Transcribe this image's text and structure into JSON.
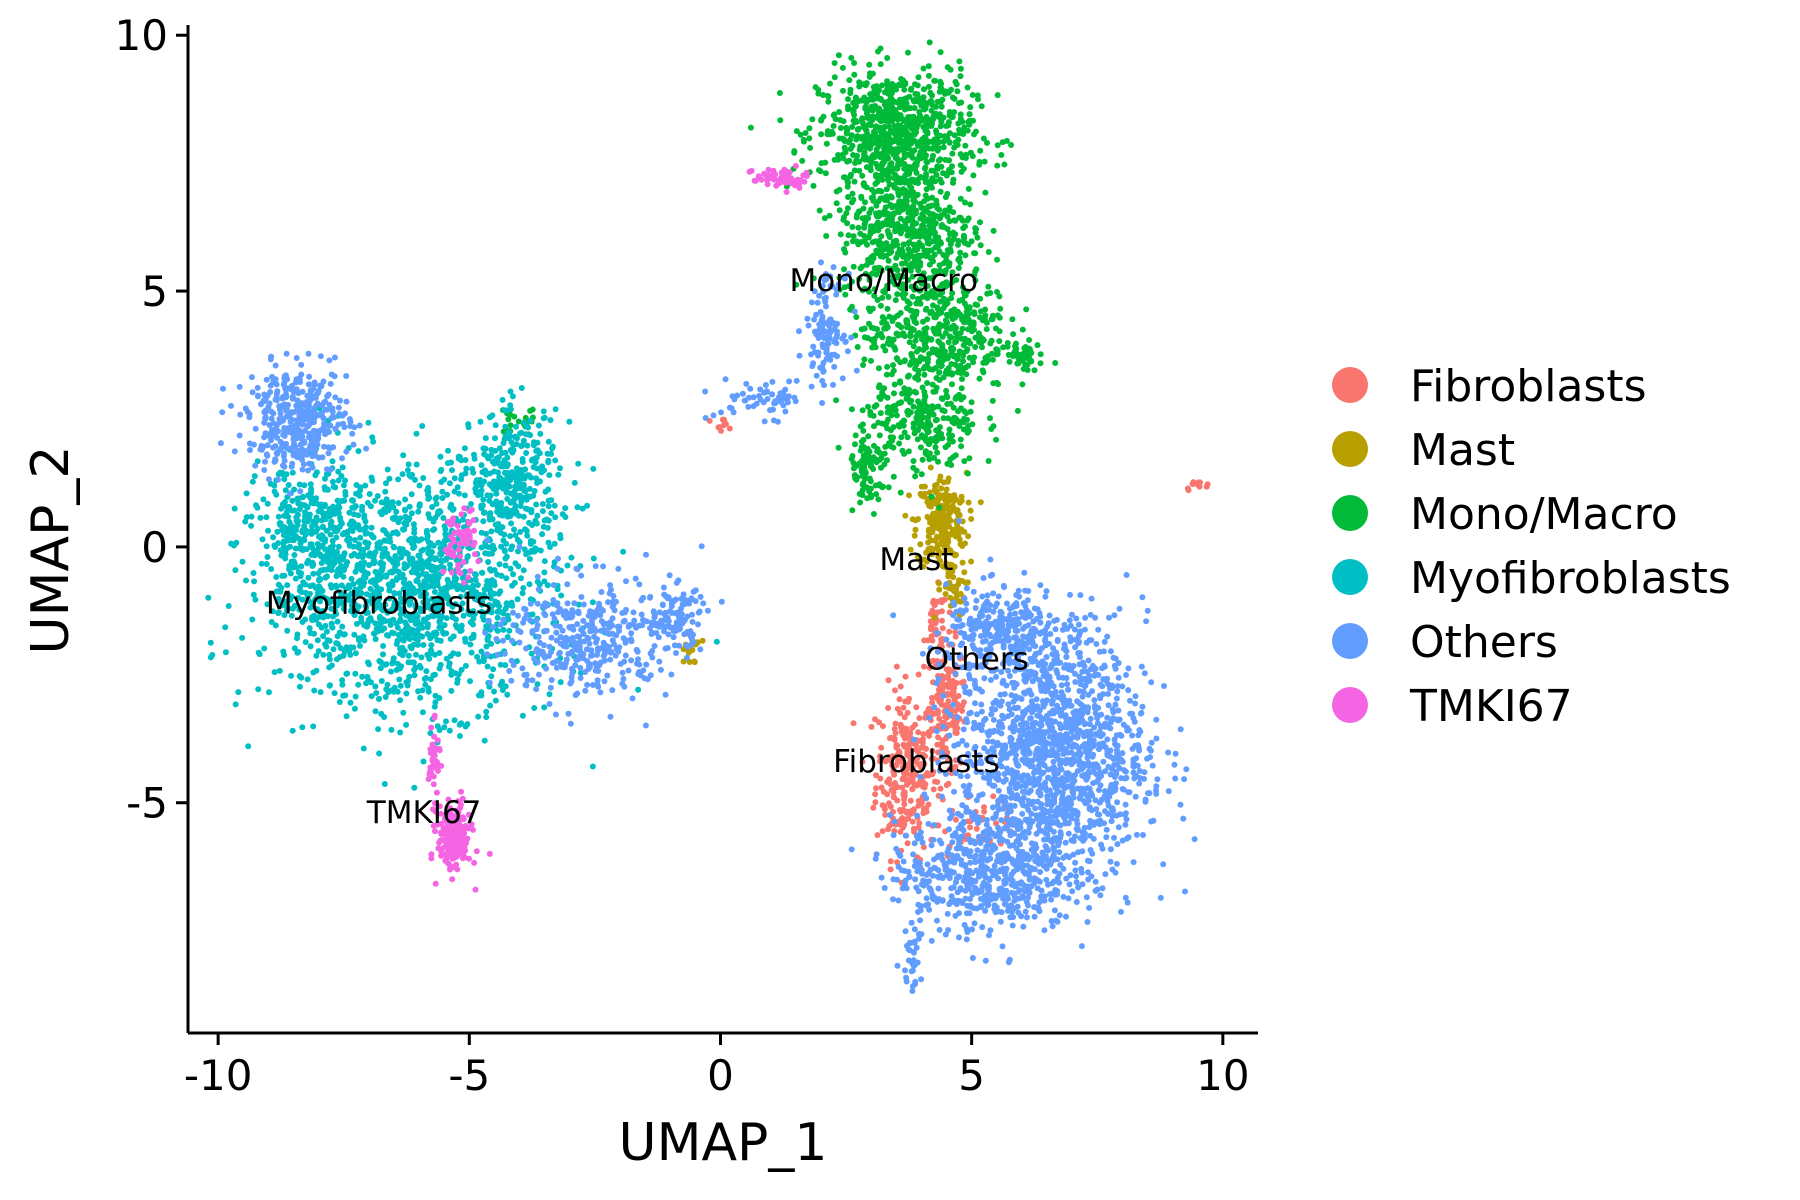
{
  "chart_data": {
    "type": "scatter",
    "xlabel": "UMAP_1",
    "ylabel": "UMAP_2",
    "xlim": [
      -10.6,
      10.7
    ],
    "ylim": [
      -9.5,
      10.2
    ],
    "x_ticks": [
      -10,
      -5,
      0,
      5,
      10
    ],
    "x_tick_labels": [
      "-10",
      "-5",
      "0",
      "5",
      "10"
    ],
    "y_ticks": [
      -5,
      0,
      5,
      10
    ],
    "y_tick_labels": [
      "-5",
      "0",
      "5",
      "10"
    ],
    "grid": false,
    "legend_position": "right",
    "series": [
      {
        "name": "Fibroblasts",
        "color": "#F8766D",
        "regions": [
          {
            "center": [
              3.7,
              -4.4
            ],
            "radius": [
              0.55,
              1.5
            ],
            "density": 260
          },
          {
            "center": [
              4.5,
              -3.2
            ],
            "radius": [
              0.35,
              1.2
            ],
            "density": 160
          },
          {
            "center": [
              4.3,
              -1.5
            ],
            "radius": [
              0.2,
              0.6
            ],
            "density": 40
          },
          {
            "center": [
              5.2,
              -5.4
            ],
            "radius": [
              0.7,
              0.4
            ],
            "density": 40
          },
          {
            "center": [
              9.5,
              1.2
            ],
            "radius": [
              0.25,
              0.08
            ],
            "density": 12
          },
          {
            "center": [
              0.0,
              2.4
            ],
            "radius": [
              0.3,
              0.1
            ],
            "density": 10
          }
        ]
      },
      {
        "name": "Mast",
        "color": "#B79F00",
        "regions": [
          {
            "center": [
              4.4,
              0.5
            ],
            "radius": [
              0.45,
              0.85
            ],
            "density": 230
          },
          {
            "center": [
              4.6,
              -0.8
            ],
            "radius": [
              0.25,
              0.5
            ],
            "density": 40
          },
          {
            "center": [
              -0.6,
              -2.0
            ],
            "radius": [
              0.2,
              0.3
            ],
            "density": 15
          }
        ]
      },
      {
        "name": "Mono/Macro",
        "color": "#00BA38",
        "regions": [
          {
            "center": [
              3.5,
              8.1
            ],
            "radius": [
              1.4,
              1.1
            ],
            "density": 750
          },
          {
            "center": [
              3.7,
              6.2
            ],
            "radius": [
              1.2,
              1.3
            ],
            "density": 550
          },
          {
            "center": [
              4.3,
              4.2
            ],
            "radius": [
              1.3,
              1.1
            ],
            "density": 460
          },
          {
            "center": [
              4.0,
              2.4
            ],
            "radius": [
              1.05,
              0.95
            ],
            "density": 260
          },
          {
            "center": [
              2.9,
              1.4
            ],
            "radius": [
              0.3,
              0.7
            ],
            "density": 70
          },
          {
            "center": [
              6.0,
              3.7
            ],
            "radius": [
              0.3,
              0.3
            ],
            "density": 40
          },
          {
            "center": [
              -4.0,
              2.5
            ],
            "radius": [
              0.4,
              0.3
            ],
            "density": 20
          }
        ]
      },
      {
        "name": "Myofibroblasts",
        "color": "#00BFC4",
        "regions": [
          {
            "center": [
              -6.2,
              -0.8
            ],
            "radius": [
              2.6,
              2.1
            ],
            "density": 1500
          },
          {
            "center": [
              -4.1,
              1.3
            ],
            "radius": [
              0.8,
              1.2
            ],
            "density": 300
          },
          {
            "center": [
              -8.2,
              0.2
            ],
            "radius": [
              0.9,
              1.3
            ],
            "density": 280
          }
        ]
      },
      {
        "name": "Others",
        "color": "#619CFF",
        "regions": [
          {
            "center": [
              -8.4,
              2.5
            ],
            "radius": [
              0.9,
              0.9
            ],
            "density": 400
          },
          {
            "center": [
              -2.7,
              -1.8
            ],
            "radius": [
              1.5,
              1.1
            ],
            "density": 380
          },
          {
            "center": [
              -0.9,
              -1.4
            ],
            "radius": [
              0.5,
              0.6
            ],
            "density": 90
          },
          {
            "center": [
              6.6,
              -4.0
            ],
            "radius": [
              1.7,
              2.3
            ],
            "density": 1500
          },
          {
            "center": [
              5.2,
              -6.4
            ],
            "radius": [
              1.6,
              1.0
            ],
            "density": 520
          },
          {
            "center": [
              5.6,
              -1.7
            ],
            "radius": [
              1.0,
              0.8
            ],
            "density": 260
          },
          {
            "center": [
              3.8,
              -8.1
            ],
            "radius": [
              0.2,
              0.5
            ],
            "density": 30
          },
          {
            "center": [
              2.1,
              4.3
            ],
            "radius": [
              0.35,
              0.9
            ],
            "density": 110
          },
          {
            "center": [
              0.9,
              2.9
            ],
            "radius": [
              0.9,
              0.35
            ],
            "density": 60
          }
        ]
      },
      {
        "name": "TMKI67",
        "color": "#F564E3",
        "regions": [
          {
            "center": [
              -5.3,
              -5.7
            ],
            "radius": [
              0.3,
              0.6
            ],
            "density": 220
          },
          {
            "center": [
              -5.7,
              -4.2
            ],
            "radius": [
              0.1,
              0.6
            ],
            "density": 40
          },
          {
            "center": [
              1.2,
              7.2
            ],
            "radius": [
              0.5,
              0.2
            ],
            "density": 60
          },
          {
            "center": [
              -5.2,
              0.1
            ],
            "radius": [
              0.3,
              0.6
            ],
            "density": 60
          }
        ]
      }
    ],
    "annotations": [
      {
        "text": "Mono/Macro",
        "x": 3.25,
        "y": 5.0
      },
      {
        "text": "Mast",
        "x": 3.9,
        "y": -0.45
      },
      {
        "text": "Myofibroblasts",
        "x": -6.8,
        "y": -1.3
      },
      {
        "text": "Others",
        "x": 5.1,
        "y": -2.4
      },
      {
        "text": "Fibroblasts",
        "x": 3.9,
        "y": -4.4
      },
      {
        "text": "TMKI67",
        "x": -5.9,
        "y": -5.4
      }
    ]
  }
}
